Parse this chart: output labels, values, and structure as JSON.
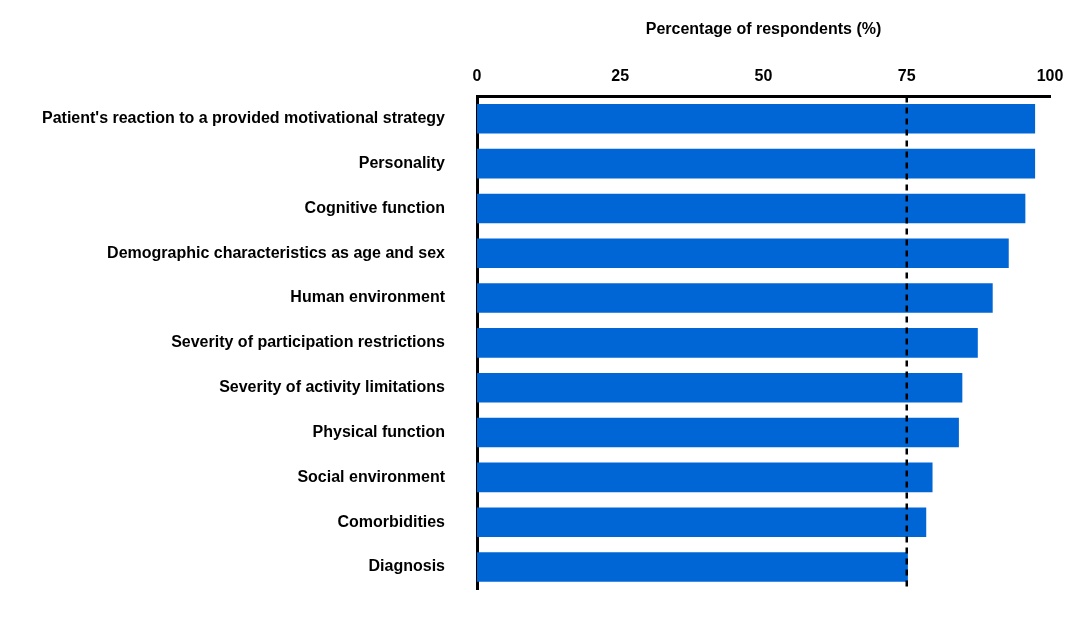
{
  "chart_data": {
    "type": "bar",
    "orientation": "horizontal",
    "xlabel": "Percentage of respondents (%)",
    "categories": [
      "Patient's reaction to a provided motivational strategy",
      "Personality",
      "Cognitive function",
      "Demographic characteristics as age and sex",
      "Human environment",
      "Severity of participation restrictions",
      "Severity of activity limitations",
      "Physical function",
      "Social environment",
      "Comorbidities",
      "Diagnosis"
    ],
    "values": [
      97.4,
      97.4,
      95.7,
      92.8,
      90.0,
      87.4,
      84.7,
      84.1,
      79.5,
      78.4,
      75.2
    ],
    "color": "#0066d6",
    "xlim": [
      0,
      100
    ],
    "xticks": [
      0,
      25,
      50,
      75,
      100
    ],
    "ref_lines": [
      {
        "axis": "x",
        "value": 75,
        "color": "#000000",
        "line_style": "dashed"
      }
    ],
    "grid": false,
    "legend": false
  }
}
